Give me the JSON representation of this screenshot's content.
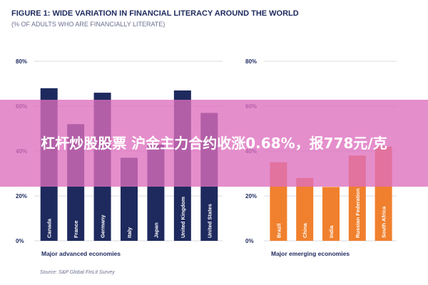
{
  "figure": {
    "title": "FIGURE 1: WIDE VARIATION IN FINANCIAL LITERACY AROUND THE WORLD",
    "subtitle": "(% OF ADULTS WHO ARE FINANCIALLY LITERATE)",
    "source": "Source: S&P Global FinLit Survey"
  },
  "overlay": {
    "text": "杠杆炒股股票 沪金主力合约收涨0.68%，报778元/克"
  },
  "colors": {
    "advanced": "#1e2a5e",
    "emerging": "#f0802d",
    "text": "#1e2a5e",
    "grid": "#d9dbe3",
    "overlay": "#de6ebe"
  },
  "chart_data": [
    {
      "type": "bar",
      "title": "",
      "xlabel": "Major advanced economies",
      "ylabel": "",
      "ylim": [
        0,
        80
      ],
      "yticks": [
        "0%",
        "20%",
        "40%",
        "60%",
        "80%"
      ],
      "categories": [
        "Canada",
        "France",
        "Germany",
        "Italy",
        "Japan",
        "United Kingdom",
        "United States"
      ],
      "values": [
        68,
        52,
        66,
        37,
        43,
        67,
        57
      ],
      "color": "#1e2a5e",
      "grid": true
    },
    {
      "type": "bar",
      "title": "",
      "xlabel": "Major emerging economies",
      "ylabel": "",
      "ylim": [
        0,
        80
      ],
      "yticks": [
        "0%",
        "20%",
        "40%",
        "60%",
        "80%"
      ],
      "categories": [
        "Brazil",
        "China",
        "India",
        "Russian Federation",
        "South Africa"
      ],
      "values": [
        35,
        28,
        24,
        38,
        42
      ],
      "color": "#f0802d",
      "grid": true
    }
  ]
}
